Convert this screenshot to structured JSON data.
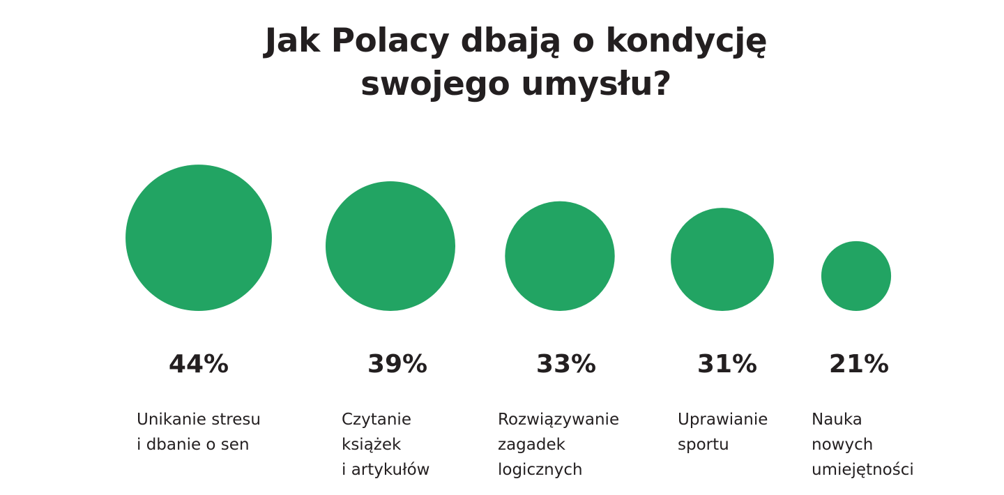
{
  "chart_data": {
    "type": "bubble",
    "title": "Jak Polacy dbają o kondycję\nswojego umysłu?",
    "categories": [
      "Unikanie stresu\ni dbanie o sen",
      "Czytanie\nksiążek\ni artykułów",
      "Rozwiązywanie\nzagadek\nlogicznych",
      "Uprawianie\nsportu",
      "Nauka\nnowych\numiejętności"
    ],
    "values": [
      44,
      39,
      33,
      31,
      21
    ],
    "value_labels": [
      "44%",
      "39%",
      "33%",
      "31%",
      "21%"
    ],
    "color": "#22a463"
  }
}
